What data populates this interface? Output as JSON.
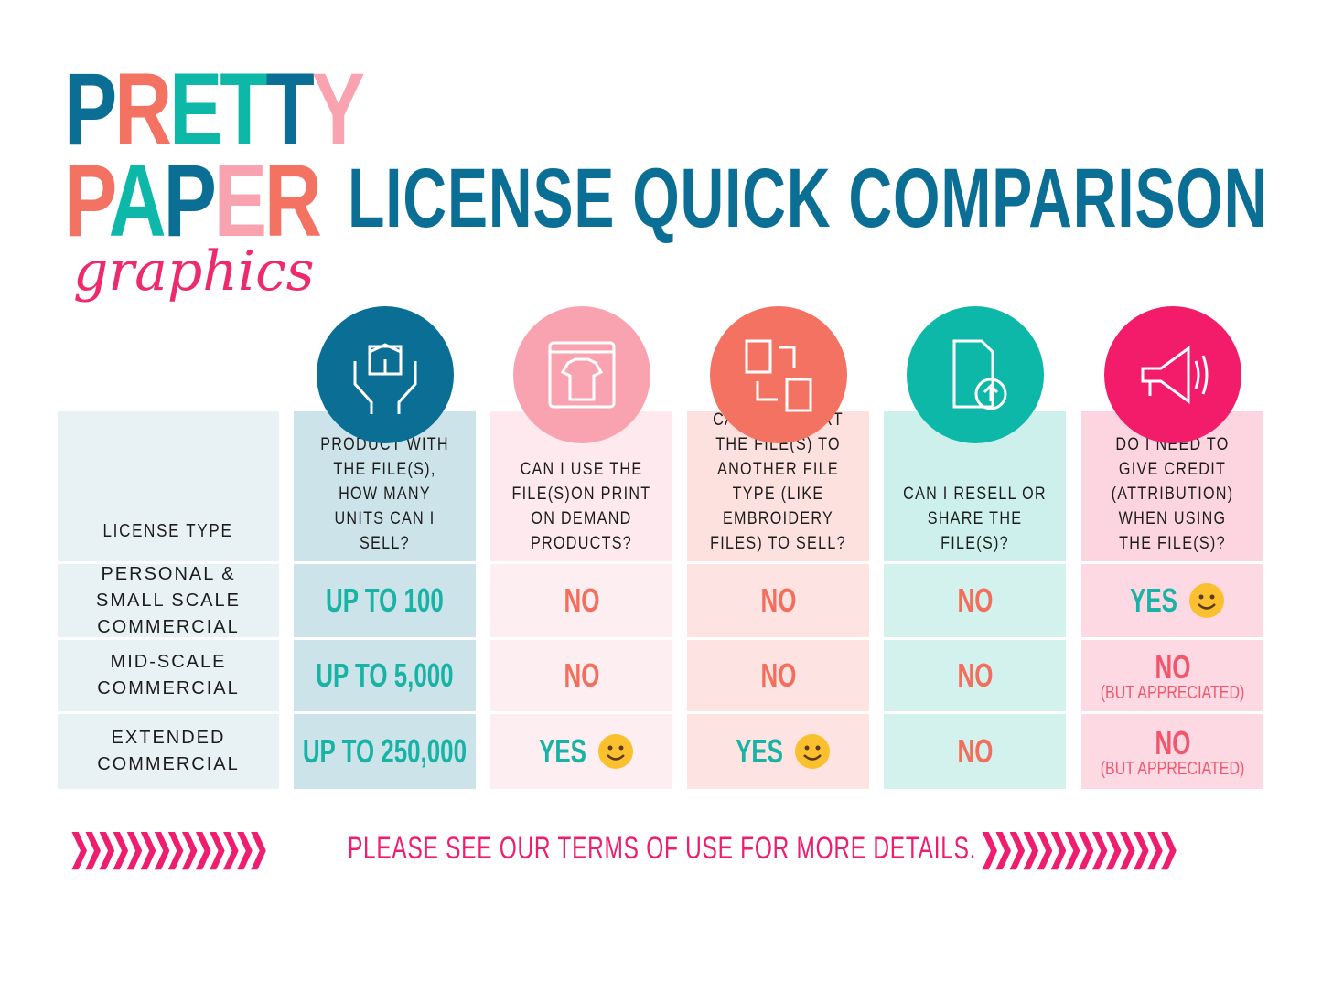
{
  "logo": {
    "line1": "PRETTY",
    "line2": "PAPER",
    "line3": "graphics",
    "line1_colors": [
      "#0b6e94",
      "#f47262",
      "#0eb8a8",
      "#0eb8a8",
      "#0b6e94",
      "#f9a3b0"
    ],
    "line2_colors": [
      "#f47262",
      "#0eb8a8",
      "#0b6e94",
      "#f9a3b0",
      "#f47262"
    ]
  },
  "title": "LICENSE QUICK COMPARISON",
  "colors": {
    "blue": "#0b6e94",
    "pink": "#f9a3b0",
    "coral": "#f47262",
    "teal": "#0eb8a8",
    "magenta": "#f21c6a",
    "value_teal": "#19b3a6",
    "value_coral": "#f26f5e",
    "value_pink": "#f2566d"
  },
  "table": {
    "label_header": "LICENSE TYPE",
    "columns": [
      {
        "icon": "hands-holding-box-icon",
        "question": "IF I MAKE A PHYSICAL PRODUCT WITH THE FILE(S), HOW MANY UNITS CAN I SELL?"
      },
      {
        "icon": "tshirt-print-icon",
        "question": "CAN I USE THE FILE(S)ON PRINT ON DEMAND PRODUCTS?"
      },
      {
        "icon": "file-convert-icon",
        "question": "CAN I CONVERT THE FILE(S) TO ANOTHER FILE TYPE (LIKE EMBROIDERY FILES) TO SELL?"
      },
      {
        "icon": "file-upload-icon",
        "question": "CAN I RESELL OR SHARE THE FILE(S)?"
      },
      {
        "icon": "megaphone-icon",
        "question": "DO I NEED TO GIVE CREDIT (ATTRIBUTION) WHEN USING THE FILE(S)?"
      }
    ],
    "rows": [
      {
        "label": "PERSONAL & SMALL SCALE COMMERCIAL",
        "values": [
          {
            "text": "UP TO 100"
          },
          {
            "text": "NO"
          },
          {
            "text": "NO"
          },
          {
            "text": "NO"
          },
          {
            "text": "YES",
            "emoji": "smile-emoji"
          }
        ]
      },
      {
        "label": "MID-SCALE COMMERCIAL",
        "values": [
          {
            "text": "UP TO 5,000"
          },
          {
            "text": "NO"
          },
          {
            "text": "NO"
          },
          {
            "text": "NO"
          },
          {
            "text": "NO",
            "sub": "(BUT APPRECIATED)"
          }
        ]
      },
      {
        "label": "EXTENDED COMMERCIAL",
        "values": [
          {
            "text": "UP TO 250,000"
          },
          {
            "text": "YES",
            "emoji": "smile-emoji"
          },
          {
            "text": "YES",
            "emoji": "smile-emoji"
          },
          {
            "text": "NO"
          },
          {
            "text": "NO",
            "sub": "(BUT APPRECIATED)"
          }
        ]
      }
    ]
  },
  "footer": {
    "text": "PLEASE SEE OUR TERMS OF USE FOR MORE DETAILS.",
    "chevrons": "❯❯❯❯❯❯❯❯❯❯❯❯❯❯"
  }
}
